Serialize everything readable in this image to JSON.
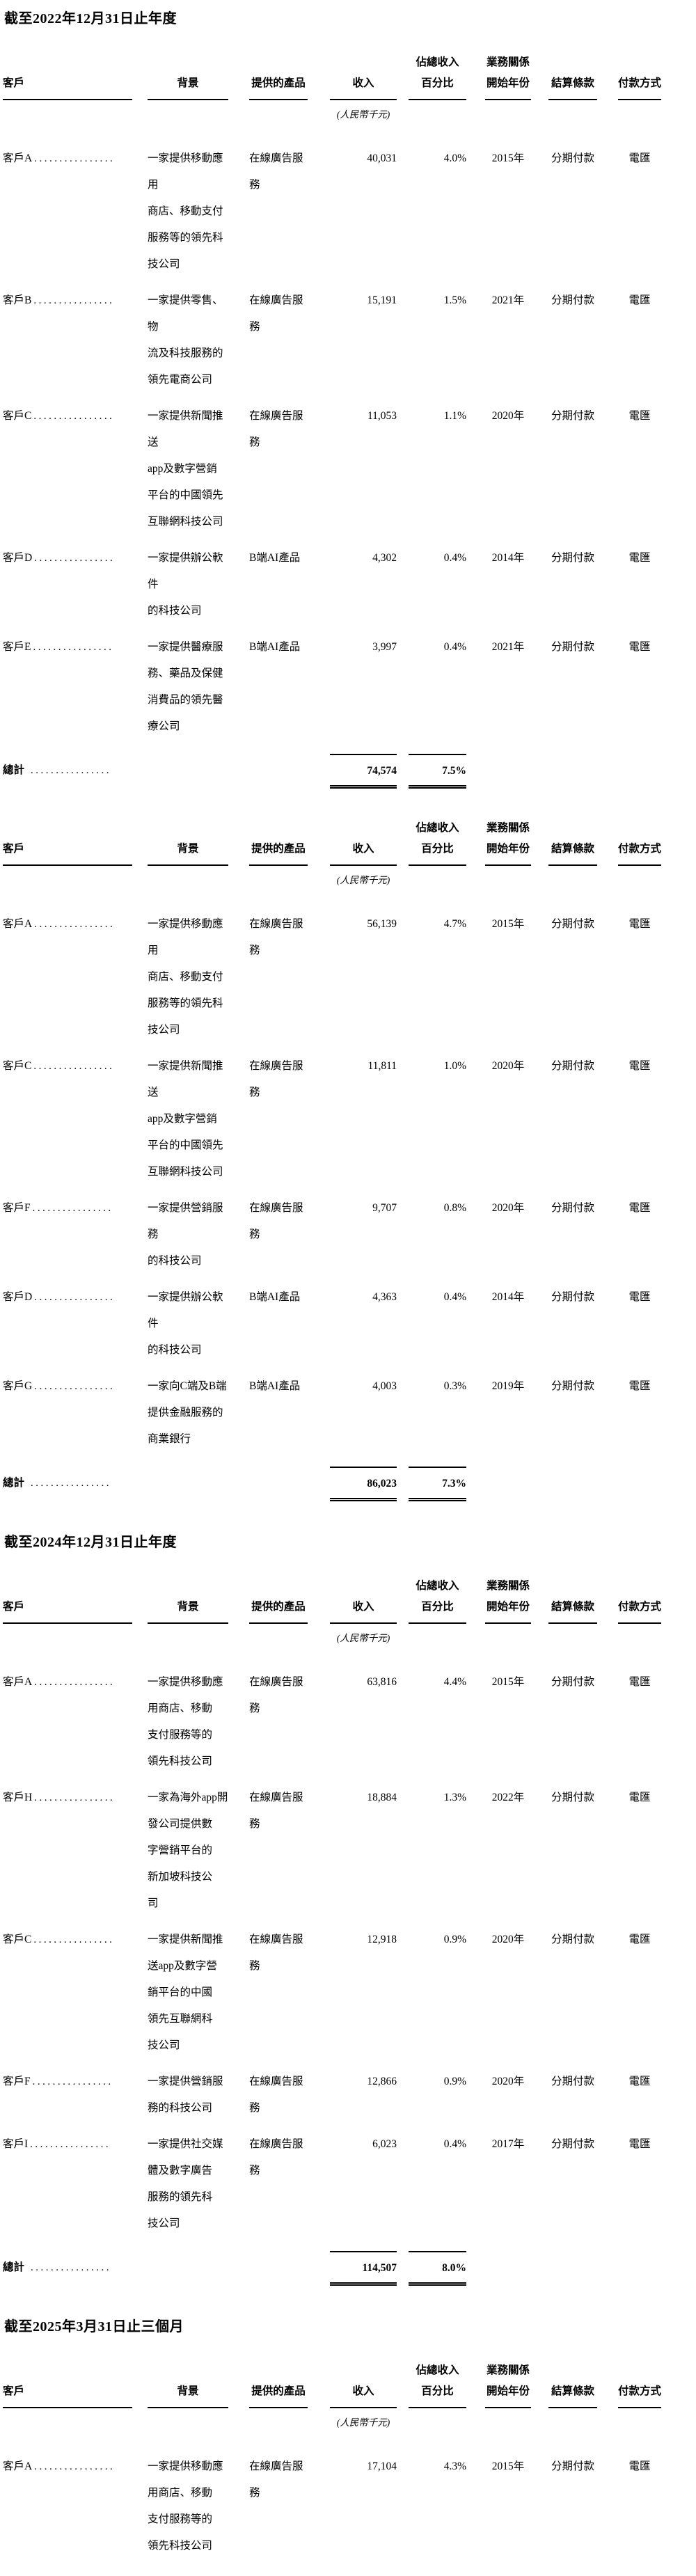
{
  "page": {
    "unit_note": "(人民幣千元)",
    "total_label": "總計",
    "row_dots": "................",
    "total_dots": "................"
  },
  "columns": {
    "customer": "客戶",
    "background": "背景",
    "product": "提供的產品",
    "revenue": "收入",
    "pct1": "佔總收入",
    "pct2": "百分比",
    "rel1": "業務關係",
    "rel2": "開始年份",
    "settlement": "結算條款",
    "payment": "付款方式"
  },
  "colors": {
    "text": "#000000",
    "rule": "#000000",
    "background": "#ffffff"
  },
  "sections": [
    {
      "heading": "截至2022年12月31日止年度",
      "rows": [
        {
          "c": "客戶A",
          "bg": "一家提供移動應用\n商店、移動支付\n服務等的領先科\n技公司",
          "prod": "在線廣告服務",
          "rev": "40,031",
          "pct": "4.0%",
          "yr": "2015年",
          "set": "分期付款",
          "pay": "電匯"
        },
        {
          "c": "客戶B",
          "bg": "一家提供零售、物\n流及科技服務的\n領先電商公司",
          "prod": "在線廣告服務",
          "rev": "15,191",
          "pct": "1.5%",
          "yr": "2021年",
          "set": "分期付款",
          "pay": "電匯"
        },
        {
          "c": "客戶C",
          "bg": "一家提供新聞推送\napp及數字營銷\n平台的中國領先\n互聯網科技公司",
          "prod": "在線廣告服務",
          "rev": "11,053",
          "pct": "1.1%",
          "yr": "2020年",
          "set": "分期付款",
          "pay": "電匯"
        },
        {
          "c": "客戶D",
          "bg": "一家提供辦公軟件\n的科技公司",
          "prod": "B端AI產品",
          "rev": "4,302",
          "pct": "0.4%",
          "yr": "2014年",
          "set": "分期付款",
          "pay": "電匯"
        },
        {
          "c": "客戶E",
          "bg": "一家提供醫療服\n務、藥品及保健\n消費品的領先醫\n療公司",
          "prod": "B端AI產品",
          "rev": "3,997",
          "pct": "0.4%",
          "yr": "2021年",
          "set": "分期付款",
          "pay": "電匯"
        }
      ],
      "total": {
        "rev": "74,574",
        "pct": "7.5%"
      }
    },
    {
      "rows": [
        {
          "c": "客戶A",
          "bg": "一家提供移動應用\n商店、移動支付\n服務等的領先科\n技公司",
          "prod": "在線廣告服務",
          "rev": "56,139",
          "pct": "4.7%",
          "yr": "2015年",
          "set": "分期付款",
          "pay": "電匯"
        },
        {
          "c": "客戶C",
          "bg": "一家提供新聞推送\napp及數字營銷\n平台的中國領先\n互聯網科技公司",
          "prod": "在線廣告服務",
          "rev": "11,811",
          "pct": "1.0%",
          "yr": "2020年",
          "set": "分期付款",
          "pay": "電匯"
        },
        {
          "c": "客戶F",
          "bg": "一家提供營銷服務\n的科技公司",
          "prod": "在線廣告服務",
          "rev": "9,707",
          "pct": "0.8%",
          "yr": "2020年",
          "set": "分期付款",
          "pay": "電匯"
        },
        {
          "c": "客戶D",
          "bg": "一家提供辦公軟件\n的科技公司",
          "prod": "B端AI產品",
          "rev": "4,363",
          "pct": "0.4%",
          "yr": "2014年",
          "set": "分期付款",
          "pay": "電匯"
        },
        {
          "c": "客戶G",
          "bg": "一家向C端及B端\n提供金融服務的\n商業銀行",
          "prod": "B端AI產品",
          "rev": "4,003",
          "pct": "0.3%",
          "yr": "2019年",
          "set": "分期付款",
          "pay": "電匯"
        }
      ],
      "total": {
        "rev": "86,023",
        "pct": "7.3%"
      }
    },
    {
      "heading": "截至2024年12月31日止年度",
      "rows": [
        {
          "c": "客戶A",
          "bg": "一家提供移動應\n用商店、移動\n支付服務等的\n領先科技公司",
          "prod": "在線廣告服務",
          "rev": "63,816",
          "pct": "4.4%",
          "yr": "2015年",
          "set": "分期付款",
          "pay": "電匯"
        },
        {
          "c": "客戶H",
          "bg": "一家為海外app開\n發公司提供數\n字營銷平台的\n新加坡科技公\n司",
          "prod": "在線廣告服務",
          "rev": "18,884",
          "pct": "1.3%",
          "yr": "2022年",
          "set": "分期付款",
          "pay": "電匯"
        },
        {
          "c": "客戶C",
          "bg": "一家提供新聞推\n送app及數字營\n銷平台的中國\n領先互聯網科\n技公司",
          "prod": "在線廣告服務",
          "rev": "12,918",
          "pct": "0.9%",
          "yr": "2020年",
          "set": "分期付款",
          "pay": "電匯"
        },
        {
          "c": "客戶F",
          "bg": "一家提供營銷服\n務的科技公司",
          "prod": "在線廣告服務",
          "rev": "12,866",
          "pct": "0.9%",
          "yr": "2020年",
          "set": "分期付款",
          "pay": "電匯"
        },
        {
          "c": "客戶I",
          "bg": "一家提供社交媒\n體及數字廣告\n服務的領先科\n技公司",
          "prod": "在線廣告服務",
          "rev": "6,023",
          "pct": "0.4%",
          "yr": "2017年",
          "set": "分期付款",
          "pay": "電匯"
        }
      ],
      "total": {
        "rev": "114,507",
        "pct": "8.0%"
      }
    },
    {
      "heading": "截至2025年3月31日止三個月",
      "rows": [
        {
          "c": "客戶A",
          "bg": "一家提供移動應\n用商店、移動\n支付服務等的\n領先科技公司",
          "prod": "在線廣告服務",
          "rev": "17,104",
          "pct": "4.3%",
          "yr": "2015年",
          "set": "分期付款",
          "pay": "電匯"
        }
      ]
    }
  ]
}
